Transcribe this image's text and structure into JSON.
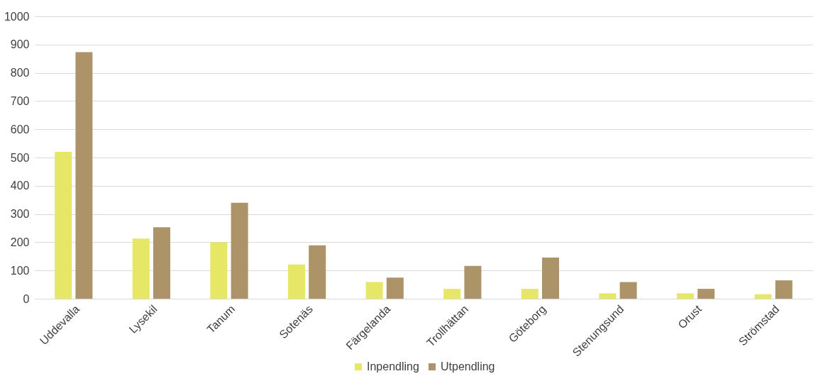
{
  "chart_data": {
    "type": "bar",
    "categories": [
      "Uddevalla",
      "Lysekil",
      "Tanum",
      "Sotenäs",
      "Färgelanda",
      "Trollhättan",
      "Göteborg",
      "Stenungsund",
      "Orust",
      "Strömstad"
    ],
    "series": [
      {
        "name": "Inpendling",
        "color": "#e6e667",
        "values": [
          520,
          213,
          200,
          121,
          59,
          35,
          35,
          19,
          19,
          16
        ]
      },
      {
        "name": "Utpendling",
        "color": "#ad9468",
        "values": [
          873,
          253,
          340,
          189,
          75,
          116,
          146,
          59,
          35,
          65
        ]
      }
    ],
    "ylim": [
      0,
      1000
    ],
    "yticks": [
      0,
      100,
      200,
      300,
      400,
      500,
      600,
      700,
      800,
      900,
      1000
    ],
    "grid": "y",
    "legend": "bottom"
  }
}
